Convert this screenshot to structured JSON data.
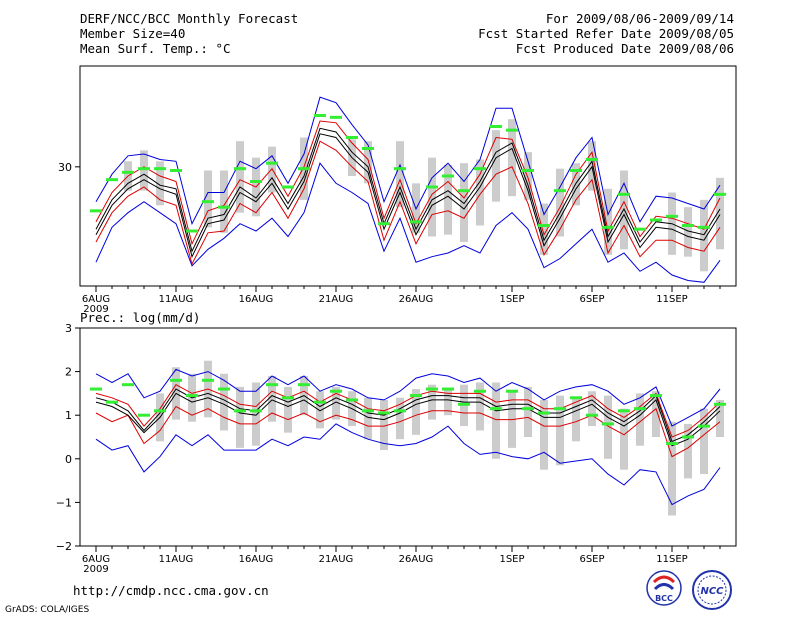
{
  "header": {
    "left": [
      "DERF/NCC/BCC Monthly Forecast",
      "Member Size=40",
      "Mean Surf. Temp.: °C"
    ],
    "right": [
      "For 2009/08/06-2009/09/14",
      "Fcst Started Refer Date 2009/08/05",
      "Fcst Produced Date 2009/08/06"
    ]
  },
  "footer": {
    "url": "http://cmdp.ncc.cma.gov.cn",
    "grads": "GrADS: COLA/IGES"
  },
  "logos": {
    "bcc": "BCC",
    "ncc": "NCC"
  },
  "colors": {
    "max_min": "#0000dd",
    "spread": "#dd0000",
    "mean": "#000000",
    "bar": "#cccccc",
    "marker": "#33ee33"
  },
  "chart_data": [
    {
      "type": "line",
      "name": "temperature",
      "title": "Mean Surf. Temp.: °C",
      "ylim": [
        23.5,
        35.5
      ],
      "ytick_labels": [
        {
          "value": 30,
          "label": "30"
        }
      ],
      "x": [
        6,
        7,
        8,
        9,
        10,
        11,
        12,
        13,
        14,
        15,
        16,
        17,
        18,
        19,
        20,
        21,
        22,
        23,
        24,
        25,
        26,
        27,
        28,
        29,
        30,
        31,
        32,
        33,
        34,
        35,
        36,
        37,
        38,
        39,
        40,
        41,
        42,
        43,
        44,
        45
      ],
      "x_ticks": [
        {
          "day": 6,
          "label": "6AUG",
          "sublabel": "2009"
        },
        {
          "day": 11,
          "label": "11AUG"
        },
        {
          "day": 16,
          "label": "16AUG"
        },
        {
          "day": 21,
          "label": "21AUG"
        },
        {
          "day": 26,
          "label": "26AUG"
        },
        {
          "day": 32,
          "label": "1SEP"
        },
        {
          "day": 37,
          "label": "6SEP"
        },
        {
          "day": 42,
          "label": "11SEP"
        }
      ],
      "series": [
        {
          "name": "max",
          "color": "#0000dd",
          "values": [
            28.1,
            29.6,
            30.6,
            30.7,
            30.4,
            30.3,
            26.9,
            28.6,
            28.6,
            30.3,
            29.9,
            30.6,
            29.1,
            30.7,
            33.8,
            33.5,
            32.3,
            31.2,
            28.1,
            30.1,
            27.7,
            29.4,
            30.2,
            29.2,
            30.4,
            33.2,
            33.2,
            30.3,
            27.4,
            28.9,
            30.5,
            31.6,
            27.4,
            29.1,
            27.0,
            28.4,
            28.3,
            28.0,
            27.7,
            29.0
          ]
        },
        {
          "name": "spread_upper",
          "color": "#dd0000",
          "values": [
            27.0,
            28.6,
            29.5,
            30.0,
            29.5,
            29.2,
            25.8,
            27.6,
            27.9,
            29.3,
            28.9,
            29.9,
            28.4,
            30.0,
            32.5,
            32.4,
            31.3,
            30.4,
            27.2,
            29.3,
            26.9,
            28.5,
            29.2,
            28.3,
            29.6,
            31.6,
            31.5,
            29.4,
            26.3,
            27.8,
            29.6,
            30.8,
            26.5,
            28.1,
            26.2,
            27.3,
            27.2,
            26.9,
            26.6,
            28.3
          ]
        },
        {
          "name": "mean_upper",
          "color": "#000000",
          "values": [
            26.6,
            28.2,
            29.1,
            29.6,
            29.0,
            28.8,
            25.4,
            27.2,
            27.4,
            28.9,
            28.3,
            29.4,
            28.0,
            29.5,
            32.1,
            31.9,
            30.8,
            30.0,
            26.9,
            28.9,
            26.6,
            28.2,
            28.7,
            28.0,
            29.2,
            30.8,
            31.3,
            29.0,
            26.0,
            27.5,
            29.1,
            30.3,
            26.2,
            27.7,
            25.9,
            27.0,
            26.9,
            26.5,
            26.3,
            27.7
          ]
        },
        {
          "name": "mean_lower",
          "color": "#000000",
          "values": [
            26.3,
            27.9,
            28.8,
            29.3,
            28.8,
            28.5,
            25.1,
            26.9,
            27.1,
            28.6,
            28.1,
            29.1,
            27.7,
            29.2,
            31.8,
            31.6,
            30.5,
            29.7,
            26.6,
            28.6,
            26.3,
            27.9,
            28.4,
            27.7,
            28.9,
            30.5,
            31.0,
            28.7,
            25.7,
            27.2,
            28.8,
            30.0,
            25.9,
            27.4,
            25.6,
            26.7,
            26.6,
            26.2,
            26.0,
            27.4
          ]
        },
        {
          "name": "spread_lower",
          "color": "#dd0000",
          "values": [
            25.9,
            27.5,
            28.4,
            28.9,
            28.2,
            27.9,
            24.7,
            26.4,
            26.5,
            28.0,
            27.5,
            28.6,
            27.2,
            28.8,
            31.4,
            30.9,
            30.0,
            29.2,
            26.0,
            28.1,
            25.8,
            27.4,
            27.6,
            27.2,
            28.5,
            29.6,
            30.0,
            28.0,
            25.2,
            26.6,
            28.2,
            29.3,
            25.3,
            26.8,
            25.1,
            26.0,
            26.0,
            25.6,
            25.4,
            26.7
          ]
        },
        {
          "name": "min",
          "color": "#0000dd",
          "values": [
            24.8,
            26.7,
            27.5,
            28.1,
            27.5,
            26.9,
            24.6,
            25.5,
            26.1,
            26.9,
            26.5,
            27.2,
            26.2,
            27.5,
            30.2,
            29.1,
            28.6,
            28.0,
            25.4,
            27.2,
            24.8,
            25.1,
            25.3,
            25.7,
            25.3,
            26.8,
            27.5,
            26.6,
            24.5,
            25.0,
            25.8,
            26.6,
            24.8,
            25.3,
            24.3,
            24.8,
            24.1,
            23.8,
            23.7,
            24.9
          ]
        },
        {
          "name": "bar_high",
          "color": "#cccccc",
          "values": [
            null,
            null,
            30.3,
            30.9,
            30.3,
            null,
            null,
            29.8,
            29.8,
            31.4,
            30.5,
            31.1,
            null,
            31.6,
            null,
            null,
            31.5,
            31.4,
            null,
            31.4,
            29.1,
            30.5,
            30.1,
            30.2,
            30.4,
            32.0,
            32.6,
            30.8,
            28.0,
            29.9,
            30.2,
            31.4,
            28.8,
            29.8,
            null,
            null,
            28.6,
            27.8,
            28.2,
            29.4
          ]
        },
        {
          "name": "bar_low",
          "color": "#cccccc",
          "values": [
            null,
            null,
            28.7,
            28.7,
            27.9,
            null,
            null,
            26.7,
            26.4,
            27.5,
            27.3,
            28.6,
            null,
            28.2,
            null,
            null,
            29.5,
            29.1,
            null,
            27.8,
            26.4,
            26.2,
            26.3,
            25.9,
            26.8,
            28.1,
            28.4,
            28.2,
            25.2,
            26.2,
            27.9,
            28.7,
            25.2,
            25.5,
            null,
            null,
            25.2,
            25.1,
            24.3,
            25.5
          ]
        },
        {
          "name": "observed",
          "color": "#33ee33",
          "values": [
            27.6,
            29.3,
            29.7,
            29.9,
            29.9,
            29.8,
            26.5,
            28.1,
            27.8,
            29.9,
            29.2,
            30.2,
            28.9,
            29.9,
            32.8,
            32.7,
            31.6,
            31.0,
            26.9,
            29.9,
            27.0,
            28.9,
            29.5,
            28.7,
            29.9,
            32.2,
            32.0,
            29.8,
            26.8,
            28.7,
            29.8,
            30.4,
            26.7,
            28.5,
            26.6,
            27.1,
            27.3,
            26.8,
            26.7,
            28.5
          ]
        }
      ]
    },
    {
      "type": "line",
      "name": "precipitation",
      "title": "Prec.: log(mm/d)",
      "ylim": [
        -2,
        3
      ],
      "ytick_labels": [
        {
          "value": 3,
          "label": "3"
        },
        {
          "value": 2,
          "label": "2"
        },
        {
          "value": 1,
          "label": "1"
        },
        {
          "value": 0,
          "label": "0"
        },
        {
          "value": -1,
          "label": "−1"
        },
        {
          "value": -2,
          "label": "−2"
        }
      ],
      "x": [
        6,
        7,
        8,
        9,
        10,
        11,
        12,
        13,
        14,
        15,
        16,
        17,
        18,
        19,
        20,
        21,
        22,
        23,
        24,
        25,
        26,
        27,
        28,
        29,
        30,
        31,
        32,
        33,
        34,
        35,
        36,
        37,
        38,
        39,
        40,
        41,
        42,
        43,
        44,
        45
      ],
      "x_ticks": [
        {
          "day": 6,
          "label": "6AUG",
          "sublabel": "2009"
        },
        {
          "day": 11,
          "label": "11AUG"
        },
        {
          "day": 16,
          "label": "16AUG"
        },
        {
          "day": 21,
          "label": "21AUG"
        },
        {
          "day": 26,
          "label": "26AUG"
        },
        {
          "day": 32,
          "label": "1SEP"
        },
        {
          "day": 37,
          "label": "6SEP"
        },
        {
          "day": 42,
          "label": "11SEP"
        }
      ],
      "series": [
        {
          "name": "max",
          "color": "#0000dd",
          "values": [
            1.95,
            1.75,
            1.95,
            1.4,
            1.55,
            2.05,
            1.9,
            2.0,
            1.8,
            1.55,
            1.55,
            1.9,
            1.7,
            1.9,
            1.55,
            1.7,
            1.6,
            1.4,
            1.35,
            1.55,
            1.85,
            1.95,
            1.9,
            1.75,
            1.85,
            1.55,
            1.75,
            1.6,
            1.35,
            1.55,
            1.65,
            1.7,
            1.55,
            1.25,
            1.4,
            1.65,
            0.75,
            0.95,
            1.15,
            1.6
          ]
        },
        {
          "name": "spread_upper",
          "color": "#dd0000",
          "values": [
            1.5,
            1.4,
            1.25,
            0.75,
            1.15,
            1.7,
            1.5,
            1.6,
            1.45,
            1.25,
            1.2,
            1.55,
            1.4,
            1.55,
            1.3,
            1.5,
            1.35,
            1.15,
            1.1,
            1.25,
            1.45,
            1.55,
            1.5,
            1.5,
            1.5,
            1.3,
            1.35,
            1.35,
            1.15,
            1.15,
            1.3,
            1.45,
            1.15,
            0.95,
            1.2,
            1.5,
            0.5,
            0.65,
            0.95,
            1.3
          ]
        },
        {
          "name": "mean_upper",
          "color": "#000000",
          "values": [
            1.4,
            1.3,
            1.1,
            0.65,
            1.05,
            1.6,
            1.4,
            1.5,
            1.35,
            1.15,
            1.1,
            1.45,
            1.3,
            1.45,
            1.2,
            1.4,
            1.25,
            1.05,
            1.0,
            1.15,
            1.35,
            1.45,
            1.45,
            1.4,
            1.4,
            1.2,
            1.25,
            1.25,
            1.05,
            1.05,
            1.2,
            1.35,
            1.05,
            0.85,
            1.1,
            1.45,
            0.4,
            0.55,
            0.85,
            1.2
          ]
        },
        {
          "name": "mean_lower",
          "color": "#000000",
          "values": [
            1.3,
            1.2,
            1.0,
            0.6,
            0.95,
            1.5,
            1.3,
            1.4,
            1.25,
            1.05,
            1.0,
            1.35,
            1.2,
            1.35,
            1.1,
            1.3,
            1.15,
            0.95,
            0.9,
            1.05,
            1.25,
            1.35,
            1.35,
            1.3,
            1.3,
            1.1,
            1.15,
            1.15,
            0.95,
            0.95,
            1.1,
            1.25,
            0.95,
            0.75,
            1.0,
            1.35,
            0.3,
            0.45,
            0.75,
            1.1
          ]
        },
        {
          "name": "spread_lower",
          "color": "#dd0000",
          "values": [
            1.05,
            0.85,
            1.0,
            0.35,
            0.65,
            1.2,
            1.0,
            1.15,
            0.95,
            0.8,
            0.8,
            1.05,
            0.9,
            1.05,
            0.85,
            1.0,
            0.9,
            0.75,
            0.75,
            0.85,
            1.0,
            1.1,
            1.1,
            1.05,
            1.05,
            0.9,
            0.9,
            0.95,
            0.75,
            0.75,
            0.85,
            1.0,
            0.75,
            0.55,
            0.85,
            1.15,
            0.05,
            0.25,
            0.55,
            0.85
          ]
        },
        {
          "name": "min",
          "color": "#0000dd",
          "values": [
            0.45,
            0.2,
            0.3,
            -0.3,
            0.05,
            0.55,
            0.3,
            0.55,
            0.2,
            0.2,
            0.2,
            0.45,
            0.3,
            0.5,
            0.45,
            0.8,
            0.6,
            0.45,
            0.35,
            0.3,
            0.35,
            0.5,
            0.75,
            0.35,
            0.1,
            0.15,
            0.05,
            0.0,
            0.15,
            -0.1,
            -0.05,
            0.0,
            -0.35,
            -0.6,
            -0.25,
            -0.3,
            -1.05,
            -0.85,
            -0.7,
            -0.2
          ]
        },
        {
          "name": "bar_high",
          "color": "#cccccc",
          "values": [
            null,
            null,
            null,
            null,
            1.5,
            2.1,
            1.95,
            2.25,
            1.95,
            1.65,
            1.75,
            1.9,
            1.65,
            1.9,
            1.55,
            1.65,
            1.55,
            1.4,
            1.35,
            1.4,
            1.6,
            1.7,
            1.6,
            1.7,
            1.75,
            1.75,
            1.55,
            1.65,
            1.35,
            1.45,
            1.4,
            1.55,
            1.45,
            1.15,
            1.5,
            1.55,
            0.85,
            0.8,
            1.15,
            1.35
          ]
        },
        {
          "name": "bar_low",
          "color": "#cccccc",
          "values": [
            null,
            null,
            null,
            null,
            0.4,
            0.9,
            0.85,
            0.95,
            0.65,
            0.25,
            0.3,
            0.85,
            0.6,
            1.0,
            0.7,
            0.9,
            0.75,
            0.45,
            0.2,
            0.45,
            0.55,
            0.9,
            1.0,
            0.75,
            0.65,
            0.0,
            0.25,
            0.5,
            -0.25,
            -0.15,
            0.4,
            0.75,
            0.0,
            -0.25,
            0.3,
            0.5,
            -1.3,
            -0.45,
            -0.35,
            0.5
          ]
        },
        {
          "name": "observed",
          "color": "#33ee33",
          "values": [
            1.6,
            1.3,
            1.7,
            1.0,
            1.1,
            1.8,
            1.45,
            1.8,
            1.6,
            1.1,
            1.1,
            1.7,
            1.4,
            1.7,
            1.3,
            1.55,
            1.35,
            1.1,
            1.05,
            1.1,
            1.45,
            1.6,
            1.6,
            1.25,
            1.55,
            1.15,
            1.55,
            1.15,
            1.05,
            1.15,
            1.4,
            1.0,
            0.8,
            1.1,
            1.15,
            1.45,
            0.35,
            0.5,
            0.75,
            1.25
          ]
        }
      ]
    }
  ]
}
